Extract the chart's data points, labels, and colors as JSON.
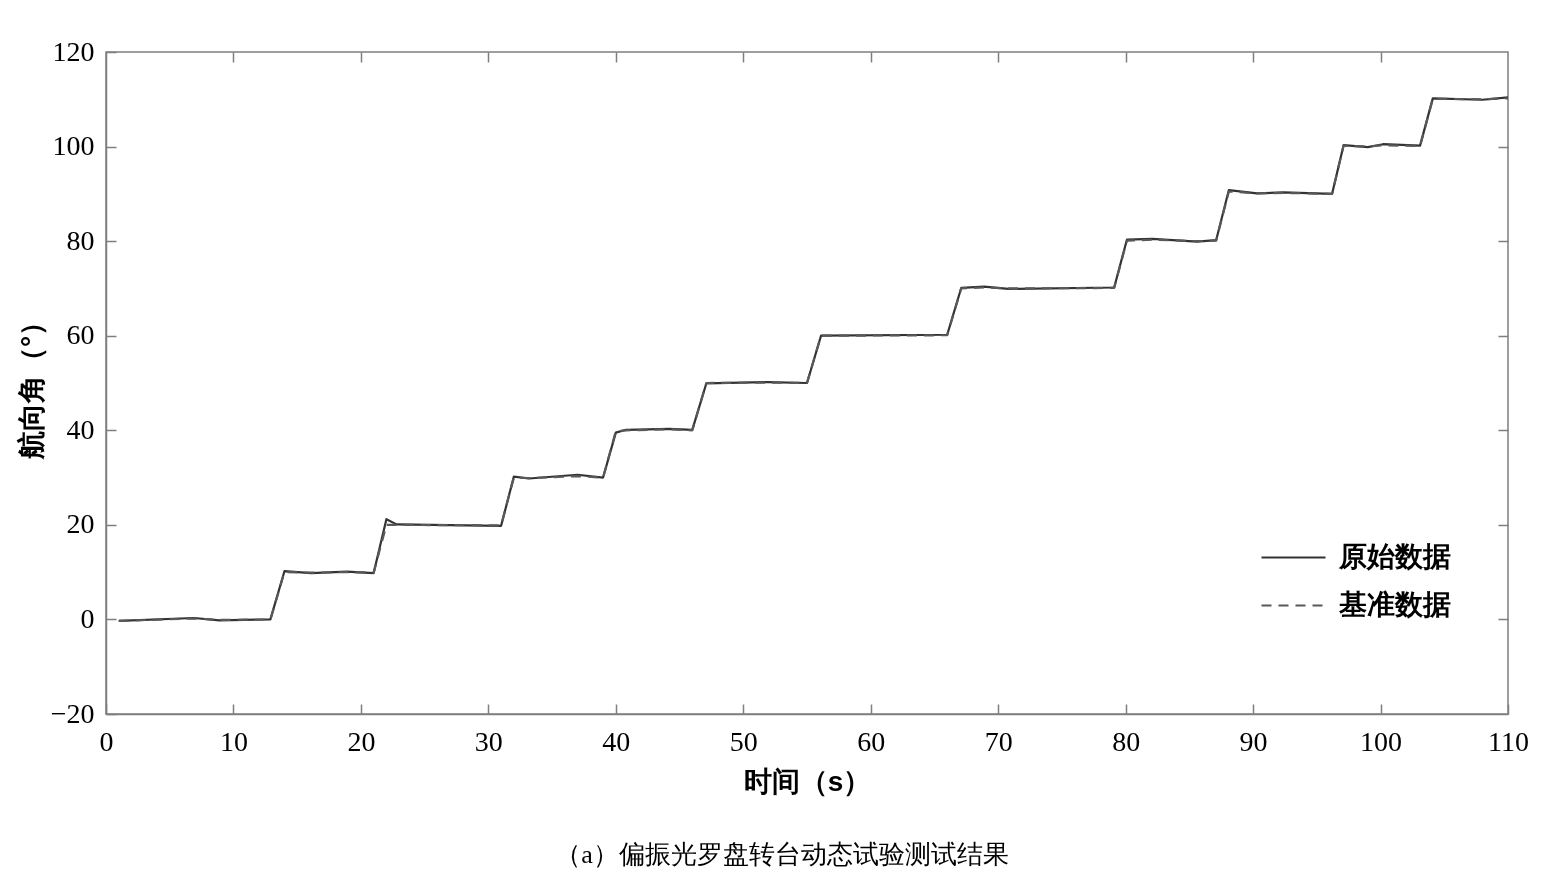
{
  "chart_data": {
    "type": "line",
    "xlabel": "时间（s）",
    "ylabel": "航向角（°）",
    "annotations": [
      "（a）偏振光罗盘转台动态试验测试结果"
    ],
    "xlim": [
      0,
      110
    ],
    "ylim": [
      -20,
      120
    ],
    "xticks": [
      0,
      10,
      20,
      30,
      40,
      50,
      60,
      70,
      80,
      90,
      100,
      110
    ],
    "yticks": [
      {
        "value": -20,
        "label": "−20"
      },
      0,
      20,
      40,
      60,
      80,
      100,
      120
    ],
    "grid": false,
    "legend": "bottom right",
    "series": [
      {
        "name": "原始数据",
        "color": "#333333",
        "line_style": "solid",
        "x": [
          1,
          6.9,
          8.9,
          12.9,
          14.0,
          16.1,
          18.9,
          21.0,
          22.0,
          22.8,
          31.0,
          32.0,
          33.2,
          37.0,
          39.0,
          40.0,
          40.8,
          44.2,
          46.0,
          47.1,
          51.9,
          55.0,
          56.1,
          66.0,
          67.1,
          68.9,
          70.8,
          79.1,
          80.1,
          82.1,
          85.6,
          87.1,
          88.1,
          90.3,
          92.4,
          96.2,
          97.1,
          99.0,
          100.2,
          103.1,
          104.1,
          108.0,
          110
        ],
        "values": [
          -0.3,
          0.3,
          -0.2,
          0,
          10.2,
          9.8,
          10.1,
          9.8,
          21.2,
          20.1,
          19.8,
          30.2,
          29.8,
          30.6,
          30.0,
          39.5,
          40.1,
          40.3,
          40.1,
          49.9,
          50.2,
          50.0,
          60.0,
          60.2,
          70.1,
          70.4,
          69.9,
          70.2,
          80.3,
          80.5,
          79.9,
          80.2,
          90.8,
          90.1,
          90.3,
          90.0,
          100.3,
          99.9,
          100.5,
          100.2,
          110.2,
          109.9,
          110.4
        ]
      },
      {
        "name": "基准数据",
        "color": "#595959",
        "line_style": "dashed",
        "x": [
          1,
          6.9,
          8.9,
          12.9,
          14.0,
          16.1,
          18.9,
          21.0,
          22.0,
          31.0,
          32.0,
          33.2,
          37.0,
          39.0,
          40.0,
          40.8,
          44.2,
          46.0,
          47.1,
          51.9,
          55.0,
          56.1,
          66.0,
          67.1,
          68.9,
          70.8,
          79.1,
          80.1,
          82.1,
          85.6,
          87.1,
          88.1,
          90.3,
          92.4,
          96.2,
          97.1,
          99.0,
          100.2,
          103.1,
          104.1,
          108.0,
          110
        ],
        "values": [
          -0.3,
          0.2,
          -0.1,
          0,
          10.0,
          9.9,
          10.0,
          9.9,
          20.0,
          19.9,
          30.0,
          29.9,
          30.3,
          30.0,
          39.8,
          40.0,
          40.2,
          40.0,
          50.0,
          50.1,
          50.0,
          60.0,
          60.1,
          70.0,
          70.2,
          70.0,
          70.1,
          80.1,
          80.3,
          80.0,
          80.1,
          90.5,
          90.1,
          90.2,
          90.0,
          100.2,
          100.0,
          100.3,
          100.1,
          110.1,
          110.0,
          110.2
        ]
      }
    ]
  }
}
